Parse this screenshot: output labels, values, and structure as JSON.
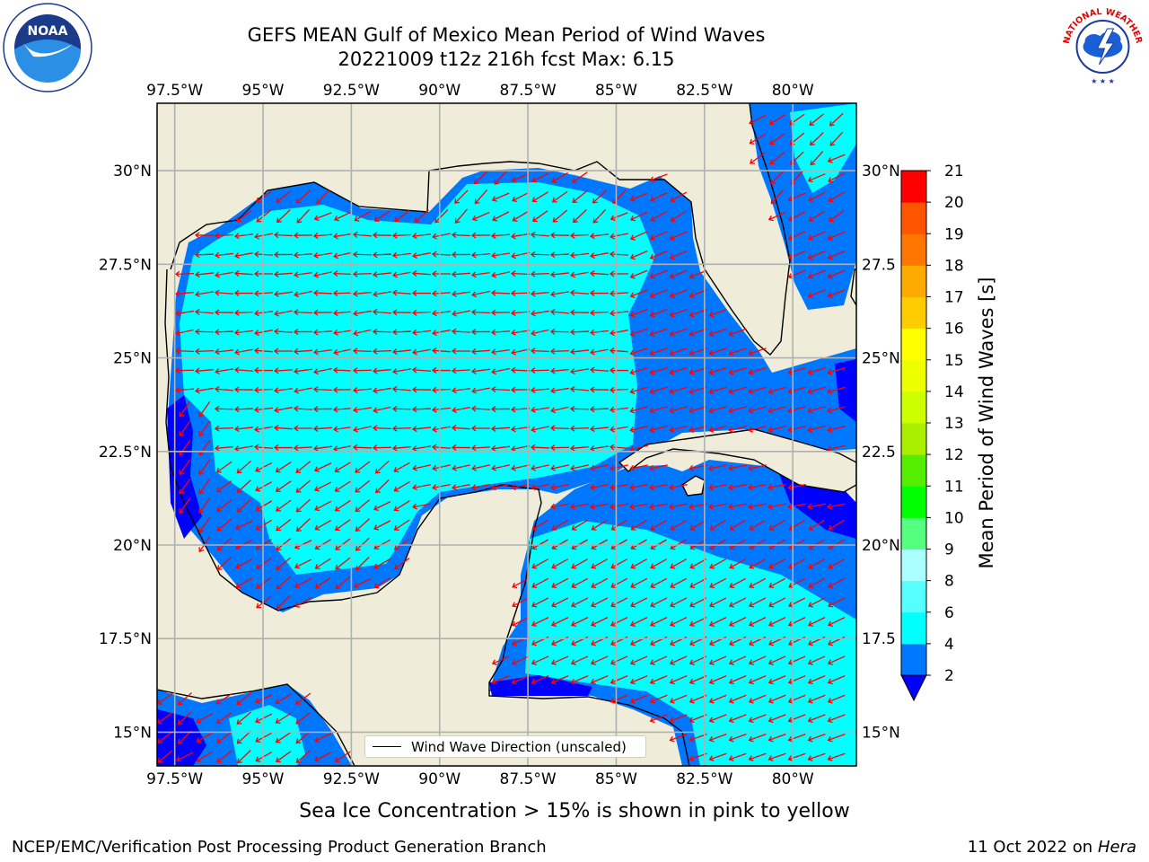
{
  "header": {
    "title_line1": "GEFS MEAN Gulf of Mexico Mean Period of Wind Waves",
    "title_line2": "20221009 t12z 216h fcst   Max: 6.15"
  },
  "logos": {
    "left": "NOAA",
    "left_ring": "NATIONAL OCEANIC AND ATMOSPHERIC ADMINISTRATION · U.S. DEPARTMENT OF COMMERCE",
    "right_ring": "NATIONAL WEATHER SERVICE"
  },
  "map": {
    "lon_labels": [
      "97.5°W",
      "95°W",
      "92.5°W",
      "90°W",
      "87.5°W",
      "85°W",
      "82.5°W",
      "80°W"
    ],
    "lat_labels_left": [
      "30°N",
      "27.5°N",
      "25°N",
      "22.5°N",
      "20°N",
      "17.5°N",
      "15°N"
    ],
    "lat_labels_right": [
      "30°N",
      "27.5",
      "25°N",
      "22.5",
      "20°N",
      "17.5",
      "15°N"
    ],
    "lon_values": [
      -97.5,
      -95,
      -92.5,
      -90,
      -87.5,
      -85,
      -82.5,
      -80
    ],
    "lat_values": [
      30,
      27.5,
      25,
      22.5,
      20,
      17.5,
      15
    ],
    "extent": {
      "lon_min": -98,
      "lon_max": -78.2,
      "lat_min": 14.1,
      "lat_max": 31.8
    },
    "colors": {
      "land": "#efedda",
      "coast": "#000000",
      "grid": "#b0b0b0",
      "arrow": "#ff0000"
    },
    "legend_label": "Wind Wave Direction (unscaled)"
  },
  "colorbar": {
    "label": "Mean Period of Wind Waves [s]",
    "ticks": [
      "2",
      "4",
      "6",
      "8",
      "9",
      "10",
      "11",
      "12",
      "13",
      "14",
      "15",
      "16",
      "17",
      "18",
      "19",
      "20",
      "21"
    ],
    "levels": [
      {
        "min": 2,
        "max": 4,
        "color": "#0077ff"
      },
      {
        "min": 4,
        "max": 6,
        "color": "#00ffff"
      },
      {
        "min": 6,
        "max": 8,
        "color": "#55ffff"
      },
      {
        "min": 8,
        "max": 9,
        "color": "#aaffff"
      },
      {
        "min": 9,
        "max": 10,
        "color": "#55ff7f"
      },
      {
        "min": 10,
        "max": 11,
        "color": "#00ff00"
      },
      {
        "min": 11,
        "max": 12,
        "color": "#55ee00"
      },
      {
        "min": 12,
        "max": 13,
        "color": "#aaee00"
      },
      {
        "min": 13,
        "max": 14,
        "color": "#ccff00"
      },
      {
        "min": 14,
        "max": 15,
        "color": "#eeff00"
      },
      {
        "min": 15,
        "max": 16,
        "color": "#ffff00"
      },
      {
        "min": 16,
        "max": 17,
        "color": "#ffcc00"
      },
      {
        "min": 17,
        "max": 18,
        "color": "#ffaa00"
      },
      {
        "min": 18,
        "max": 19,
        "color": "#ff7700"
      },
      {
        "min": 19,
        "max": 20,
        "color": "#ff5500"
      },
      {
        "min": 20,
        "max": 21,
        "color": "#ff0000"
      }
    ],
    "under_color": "#0000ff"
  },
  "footer": {
    "ice_note": "Sea Ice Concentration > 15% is shown in pink to yellow",
    "branch": "NCEP/EMC/Verification Post Processing Product Generation Branch",
    "date_prefix": "11 Oct 2022 on ",
    "date_host": "Hera"
  }
}
